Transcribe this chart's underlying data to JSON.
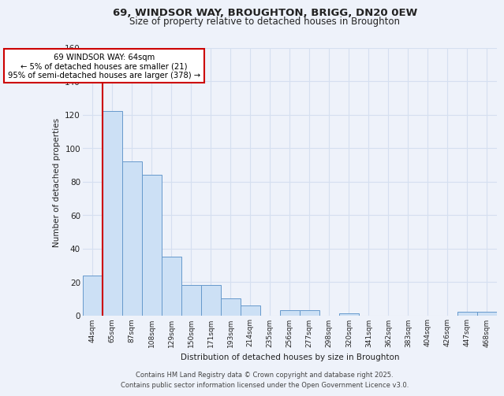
{
  "title_line1": "69, WINDSOR WAY, BROUGHTON, BRIGG, DN20 0EW",
  "title_line2": "Size of property relative to detached houses in Broughton",
  "xlabel": "Distribution of detached houses by size in Broughton",
  "ylabel": "Number of detached properties",
  "categories": [
    "44sqm",
    "65sqm",
    "87sqm",
    "108sqm",
    "129sqm",
    "150sqm",
    "171sqm",
    "193sqm",
    "214sqm",
    "235sqm",
    "256sqm",
    "277sqm",
    "298sqm",
    "320sqm",
    "341sqm",
    "362sqm",
    "383sqm",
    "404sqm",
    "426sqm",
    "447sqm",
    "468sqm"
  ],
  "values": [
    24,
    122,
    92,
    84,
    35,
    18,
    18,
    10,
    6,
    0,
    3,
    3,
    0,
    1,
    0,
    0,
    0,
    0,
    0,
    2,
    2
  ],
  "bar_color": "#cce0f5",
  "bar_edge_color": "#6699cc",
  "grid_color": "#d5dff0",
  "background_color": "#eef2fa",
  "marker_label": "69 WINDSOR WAY: 64sqm",
  "marker_note1": "← 5% of detached houses are smaller (21)",
  "marker_note2": "95% of semi-detached houses are larger (378) →",
  "marker_line_color": "#cc0000",
  "ylim": [
    0,
    160
  ],
  "yticks": [
    0,
    20,
    40,
    60,
    80,
    100,
    120,
    140,
    160
  ],
  "footer_line1": "Contains HM Land Registry data © Crown copyright and database right 2025.",
  "footer_line2": "Contains public sector information licensed under the Open Government Licence v3.0."
}
